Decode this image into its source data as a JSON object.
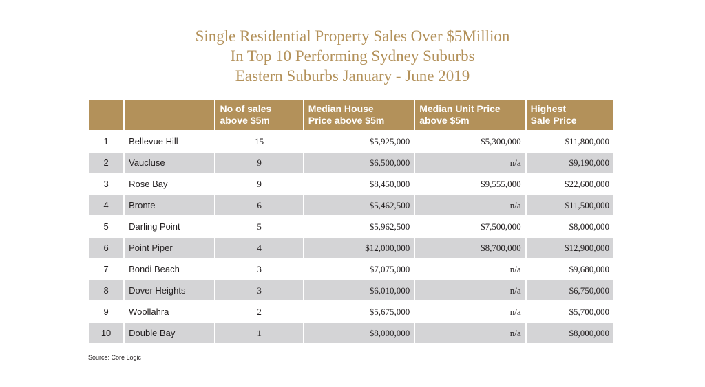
{
  "title": {
    "line1": "Single Residential Property Sales Over $5Million",
    "line2": "In Top 10 Performing Sydney Suburbs",
    "line3": "Eastern Suburbs January - June 2019"
  },
  "colors": {
    "header_bg": "#b3915a",
    "title_text": "#b3915a",
    "shaded_row": "#d4d4d6",
    "body_text": "#231f20"
  },
  "chart_data": {
    "type": "table",
    "columns": [
      {
        "line1": "",
        "line2": ""
      },
      {
        "line1": "",
        "line2": ""
      },
      {
        "line1": "No of sales",
        "line2": "above $5m"
      },
      {
        "line1": "Median House",
        "line2": "Price above $5m"
      },
      {
        "line1": "Median Unit Price",
        "line2": "above $5m"
      },
      {
        "line1": "Highest",
        "line2": "Sale Price"
      }
    ],
    "rows": [
      {
        "rank": "1",
        "suburb": "Bellevue Hill",
        "sales": "15",
        "median_house": "$5,925,000",
        "median_unit": "$5,300,000",
        "highest": "$11,800,000"
      },
      {
        "rank": "2",
        "suburb": "Vaucluse",
        "sales": "9",
        "median_house": "$6,500,000",
        "median_unit": "n/a",
        "highest": "$9,190,000"
      },
      {
        "rank": "3",
        "suburb": "Rose Bay",
        "sales": "9",
        "median_house": "$8,450,000",
        "median_unit": "$9,555,000",
        "highest": "$22,600,000"
      },
      {
        "rank": "4",
        "suburb": "Bronte",
        "sales": "6",
        "median_house": "$5,462,500",
        "median_unit": "n/a",
        "highest": "$11,500,000"
      },
      {
        "rank": "5",
        "suburb": "Darling Point",
        "sales": "5",
        "median_house": "$5,962,500",
        "median_unit": "$7,500,000",
        "highest": "$8,000,000"
      },
      {
        "rank": "6",
        "suburb": "Point Piper",
        "sales": "4",
        "median_house": "$12,000,000",
        "median_unit": "$8,700,000",
        "highest": "$12,900,000"
      },
      {
        "rank": "7",
        "suburb": "Bondi Beach",
        "sales": "3",
        "median_house": "$7,075,000",
        "median_unit": "n/a",
        "highest": "$9,680,000"
      },
      {
        "rank": "8",
        "suburb": "Dover Heights",
        "sales": "3",
        "median_house": "$6,010,000",
        "median_unit": "n/a",
        "highest": "$6,750,000"
      },
      {
        "rank": "9",
        "suburb": "Woollahra",
        "sales": "2",
        "median_house": "$5,675,000",
        "median_unit": "n/a",
        "highest": "$5,700,000"
      },
      {
        "rank": "10",
        "suburb": "Double Bay",
        "sales": "1",
        "median_house": "$8,000,000",
        "median_unit": "n/a",
        "highest": "$8,000,000"
      }
    ]
  },
  "source": "Source: Core Logic"
}
